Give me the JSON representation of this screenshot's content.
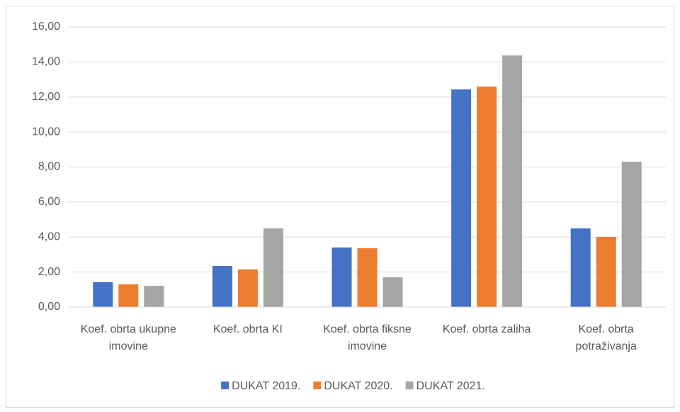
{
  "chart_data": {
    "type": "bar",
    "categories": [
      "Koef. obrta ukupne imovine",
      "Koef. obrta KI",
      "Koef. obrta fiksne imovine",
      "Koef. obrta zaliha",
      "Koef. obrta potraživanja"
    ],
    "series": [
      {
        "name": "DUKAT 2019.",
        "color": "#4472c4",
        "values": [
          1.42,
          2.35,
          3.4,
          12.43,
          4.49
        ]
      },
      {
        "name": "DUKAT 2020.",
        "color": "#ed7d31",
        "values": [
          1.3,
          2.15,
          3.36,
          12.59,
          4.01
        ]
      },
      {
        "name": "DUKAT 2021.",
        "color": "#a5a5a5",
        "values": [
          1.21,
          4.49,
          1.7,
          14.37,
          8.3
        ]
      }
    ],
    "ylim": [
      0,
      16
    ],
    "yticks": [
      {
        "value": 0,
        "label": "0,00"
      },
      {
        "value": 2,
        "label": "2,00"
      },
      {
        "value": 4,
        "label": "4,00"
      },
      {
        "value": 6,
        "label": "6,00"
      },
      {
        "value": 8,
        "label": "8,00"
      },
      {
        "value": 10,
        "label": "10,00"
      },
      {
        "value": 12,
        "label": "12,00"
      },
      {
        "value": 14,
        "label": "14,00"
      },
      {
        "value": 16,
        "label": "16,00"
      }
    ],
    "grid": true,
    "legend": "bottom"
  }
}
